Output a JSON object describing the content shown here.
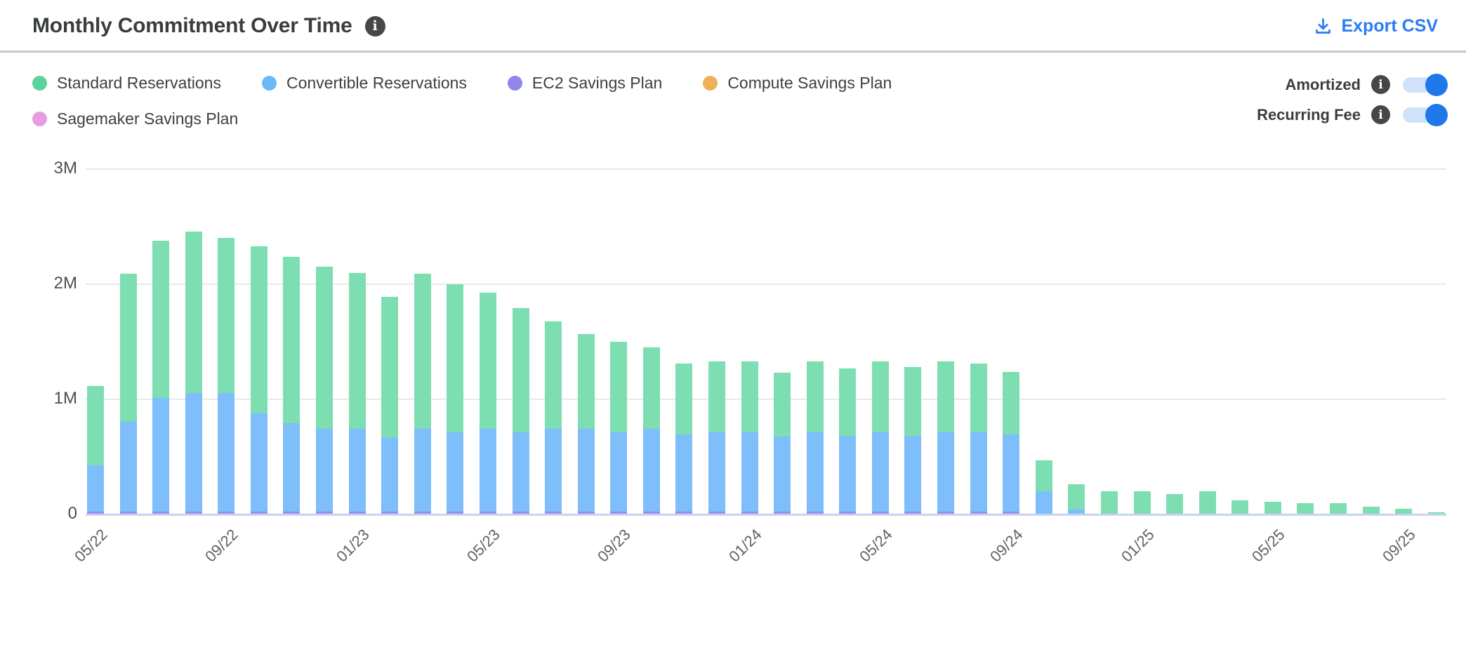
{
  "header": {
    "title": "Monthly Commitment Over Time",
    "info_icon": "info-circle-icon",
    "export_label": "Export CSV",
    "export_icon": "download-icon"
  },
  "legend": {
    "items": [
      {
        "label": "Standard Reservations",
        "color": "#5bd39b"
      },
      {
        "label": "Convertible Reservations",
        "color": "#6cb9f8"
      },
      {
        "label": "EC2 Savings Plan",
        "color": "#9186ea"
      },
      {
        "label": "Compute Savings Plan",
        "color": "#f0b057"
      },
      {
        "label": "Sagemaker Savings Plan",
        "color": "#e89de2"
      }
    ]
  },
  "toggles": [
    {
      "label": "Amortized",
      "state": "on",
      "name": "amortized-toggle"
    },
    {
      "label": "Recurring Fee",
      "state": "on",
      "name": "recurring-fee-toggle"
    }
  ],
  "colors": {
    "accent_blue": "#2b7bf3",
    "toggle_track": "#cfe2fa",
    "toggle_knob": "#1f78ea",
    "gridline": "#e8e8e8",
    "axis_line": "#c9d3ee",
    "text_dark": "#3a3d40",
    "text_axis": "#5f6368"
  },
  "chart_data": {
    "type": "bar",
    "stacked": true,
    "stack_note": "series listed bottom-to-top",
    "unit": "USD (millions)",
    "title": "Monthly Commitment Over Time",
    "xlabel": "",
    "ylabel": "",
    "ylim": [
      0,
      3
    ],
    "y_ticks": [
      "0",
      "1M",
      "2M",
      "3M"
    ],
    "grid": true,
    "legend_position": "top-left",
    "x_tick_every": 4,
    "x": [
      "05/22",
      "06/22",
      "07/22",
      "08/22",
      "09/22",
      "10/22",
      "11/22",
      "12/22",
      "01/23",
      "02/23",
      "03/23",
      "04/23",
      "05/23",
      "06/23",
      "07/23",
      "08/23",
      "09/23",
      "10/23",
      "11/23",
      "12/23",
      "01/24",
      "02/24",
      "03/24",
      "04/24",
      "05/24",
      "06/24",
      "07/24",
      "08/24",
      "09/24",
      "10/24",
      "11/24",
      "12/24",
      "01/25",
      "02/25",
      "03/25",
      "04/25",
      "05/25",
      "06/25",
      "07/25",
      "08/25",
      "09/25",
      "10/25"
    ],
    "x_axis_tick_labels": [
      "05/22",
      "09/22",
      "01/23",
      "05/23",
      "09/23",
      "01/24",
      "05/24",
      "09/24",
      "01/25",
      "05/25",
      "09/25"
    ],
    "series": [
      {
        "name": "Sagemaker Savings Plan",
        "color": "#e89de2",
        "values": [
          0,
          0,
          0,
          0,
          0,
          0,
          0,
          0,
          0,
          0,
          0,
          0,
          0,
          0,
          0,
          0,
          0,
          0,
          0,
          0,
          0,
          0,
          0,
          0,
          0,
          0,
          0,
          0,
          0,
          0,
          0,
          0,
          0,
          0,
          0,
          0,
          0,
          0,
          0,
          0,
          0,
          0
        ]
      },
      {
        "name": "EC2 Savings Plan",
        "color": "#9c8cf2",
        "values": [
          0.025,
          0.025,
          0.025,
          0.025,
          0.025,
          0.025,
          0.025,
          0.025,
          0.025,
          0.025,
          0.025,
          0.025,
          0.025,
          0.025,
          0.025,
          0.025,
          0.025,
          0.025,
          0.025,
          0.025,
          0.025,
          0.025,
          0.025,
          0.025,
          0.025,
          0.025,
          0.025,
          0.025,
          0.025,
          0,
          0,
          0,
          0,
          0,
          0,
          0,
          0,
          0,
          0,
          0,
          0,
          0
        ]
      },
      {
        "name": "Convertible Reservations",
        "color": "#7dbefb",
        "values": [
          0.4,
          0.78,
          0.99,
          1.03,
          1.03,
          0.855,
          0.77,
          0.72,
          0.72,
          0.64,
          0.72,
          0.69,
          0.72,
          0.69,
          0.72,
          0.72,
          0.69,
          0.72,
          0.67,
          0.69,
          0.69,
          0.65,
          0.69,
          0.66,
          0.69,
          0.66,
          0.69,
          0.69,
          0.67,
          0.2,
          0.04,
          0,
          0,
          0,
          0,
          0,
          0,
          0,
          0,
          0,
          0,
          0
        ]
      },
      {
        "name": "Standard Reservations",
        "color": "#7ddfb1",
        "values": [
          0.69,
          1.285,
          1.365,
          1.405,
          1.345,
          1.45,
          1.445,
          1.405,
          1.355,
          1.225,
          1.345,
          1.285,
          1.185,
          1.075,
          0.935,
          0.825,
          0.785,
          0.705,
          0.615,
          0.615,
          0.615,
          0.555,
          0.615,
          0.585,
          0.615,
          0.595,
          0.615,
          0.595,
          0.545,
          0.27,
          0.22,
          0.2,
          0.2,
          0.175,
          0.2,
          0.12,
          0.11,
          0.095,
          0.1,
          0.07,
          0.05,
          0.02
        ]
      },
      {
        "name": "Compute Savings Plan",
        "color": "#f0b057",
        "values": [
          0,
          0,
          0,
          0,
          0,
          0,
          0,
          0,
          0,
          0,
          0,
          0,
          0,
          0,
          0,
          0,
          0,
          0,
          0,
          0,
          0,
          0,
          0,
          0,
          0,
          0,
          0,
          0,
          0,
          0,
          0,
          0,
          0,
          0,
          0,
          0,
          0,
          0,
          0,
          0,
          0,
          0
        ]
      }
    ]
  }
}
